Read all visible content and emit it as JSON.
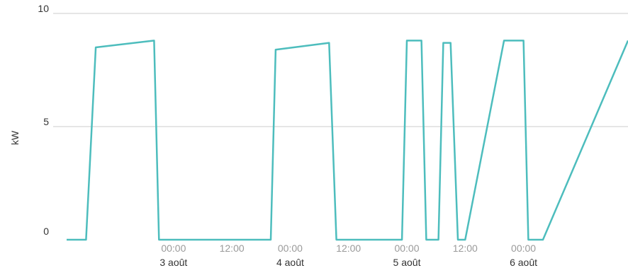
{
  "chart_data": {
    "type": "line",
    "ylabel": "kW",
    "ylim": [
      0,
      10
    ],
    "yticks": [
      {
        "value": 0,
        "label": "0"
      },
      {
        "value": 5,
        "label": "5"
      },
      {
        "value": 10,
        "label": "10"
      }
    ],
    "xlim": [
      "2024-08-02T02:00",
      "2024-08-06T21:30"
    ],
    "xticks": [
      {
        "time": "2024-08-03T00:00",
        "label": "00:00",
        "date_label": "3 août"
      },
      {
        "time": "2024-08-03T12:00",
        "label": "12:00",
        "date_label": ""
      },
      {
        "time": "2024-08-04T00:00",
        "label": "00:00",
        "date_label": "4 août"
      },
      {
        "time": "2024-08-04T12:00",
        "label": "12:00",
        "date_label": ""
      },
      {
        "time": "2024-08-05T00:00",
        "label": "00:00",
        "date_label": "5 août"
      },
      {
        "time": "2024-08-05T12:00",
        "label": "12:00",
        "date_label": ""
      },
      {
        "time": "2024-08-06T00:00",
        "label": "00:00",
        "date_label": "6 août"
      }
    ],
    "grid": true,
    "colors": {
      "line": "#4dbdbd",
      "grid": "#dddddd"
    },
    "series": [
      {
        "x": [
          "2024-08-02T02:00",
          "2024-08-02T06:00",
          "2024-08-02T08:00",
          "2024-08-02T20:00",
          "2024-08-02T21:00",
          "2024-08-03T20:00",
          "2024-08-03T21:00",
          "2024-08-04T08:00",
          "2024-08-04T09:30",
          "2024-08-04T23:00",
          "2024-08-05T00:00",
          "2024-08-05T03:00",
          "2024-08-05T04:00",
          "2024-08-05T06:30",
          "2024-08-05T07:30",
          "2024-08-05T09:00",
          "2024-08-05T10:30",
          "2024-08-05T12:00",
          "2024-08-05T20:00",
          "2024-08-06T00:00",
          "2024-08-06T01:00",
          "2024-08-06T04:00",
          "2024-08-06T21:30"
        ],
        "y": [
          0,
          0,
          8.5,
          8.8,
          0,
          0,
          8.4,
          8.7,
          0,
          0,
          8.8,
          8.8,
          0,
          0,
          8.7,
          8.7,
          0,
          0,
          8.8,
          8.8,
          0,
          0,
          8.8
        ]
      }
    ]
  }
}
